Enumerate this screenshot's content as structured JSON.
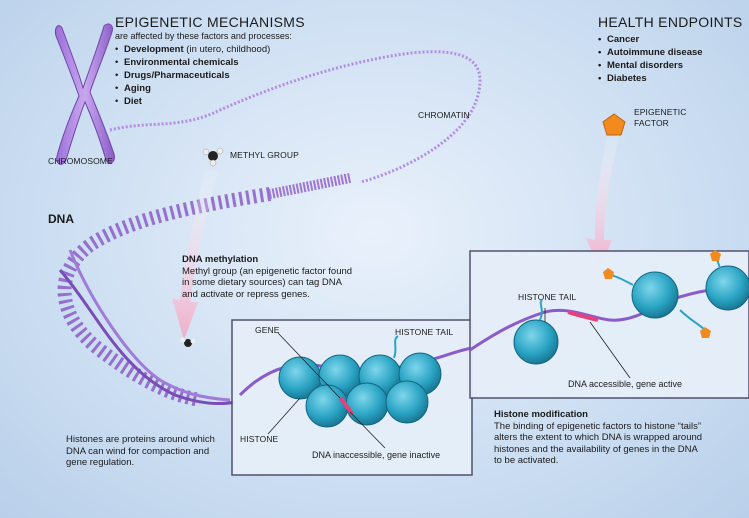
{
  "mechanisms": {
    "title": "EPIGENETIC MECHANISMS",
    "subtitle": "are affected by these factors and processes:",
    "items": [
      {
        "bold": "Development",
        "rest": " (in utero, childhood)"
      },
      {
        "bold": "Environmental chemicals",
        "rest": ""
      },
      {
        "bold": "Drugs/Pharmaceuticals",
        "rest": ""
      },
      {
        "bold": "Aging",
        "rest": ""
      },
      {
        "bold": "Diet",
        "rest": ""
      }
    ]
  },
  "endpoints": {
    "title": "HEALTH ENDPOINTS",
    "items": [
      "Cancer",
      "Autoimmune disease",
      "Mental disorders",
      "Diabetes"
    ]
  },
  "labels": {
    "chromosome": "CHROMOSOME",
    "chromatin": "CHROMATIN",
    "methyl_group": "METHYL GROUP",
    "epigenetic_factor_1": "EPIGENETIC",
    "epigenetic_factor_2": "FACTOR",
    "dna": "DNA",
    "gene": "GENE",
    "histone_tail_left": "HISTONE TAIL",
    "histone_tail_right": "HISTONE TAIL",
    "histone": "HISTONE",
    "dna_inaccessible": "DNA inaccessible, gene inactive",
    "dna_accessible": "DNA accessible, gene active"
  },
  "methylation": {
    "title": "DNA methylation",
    "lines": [
      "Methyl group (an epigenetic factor found",
      "in some dietary sources) can tag DNA",
      "and activate or repress genes."
    ]
  },
  "histones_note": {
    "lines": [
      "Histones are proteins around which",
      "DNA can wind for compaction and",
      "gene regulation."
    ]
  },
  "histone_mod": {
    "title": "Histone modification",
    "lines": [
      "The binding of epigenetic factors to histone “tails”",
      "alters the extent to which DNA is wrapped around",
      "histones and the availability of genes in the DNA",
      "to be activated."
    ]
  },
  "colors": {
    "dna_strand": "#8a5cc7",
    "histone": "#2aa4c4",
    "pink_arrow": "#f2b7cf",
    "gene_marker": "#e8407a",
    "factor_orange": "#f28a1e",
    "box_border": "#4a4a66"
  }
}
